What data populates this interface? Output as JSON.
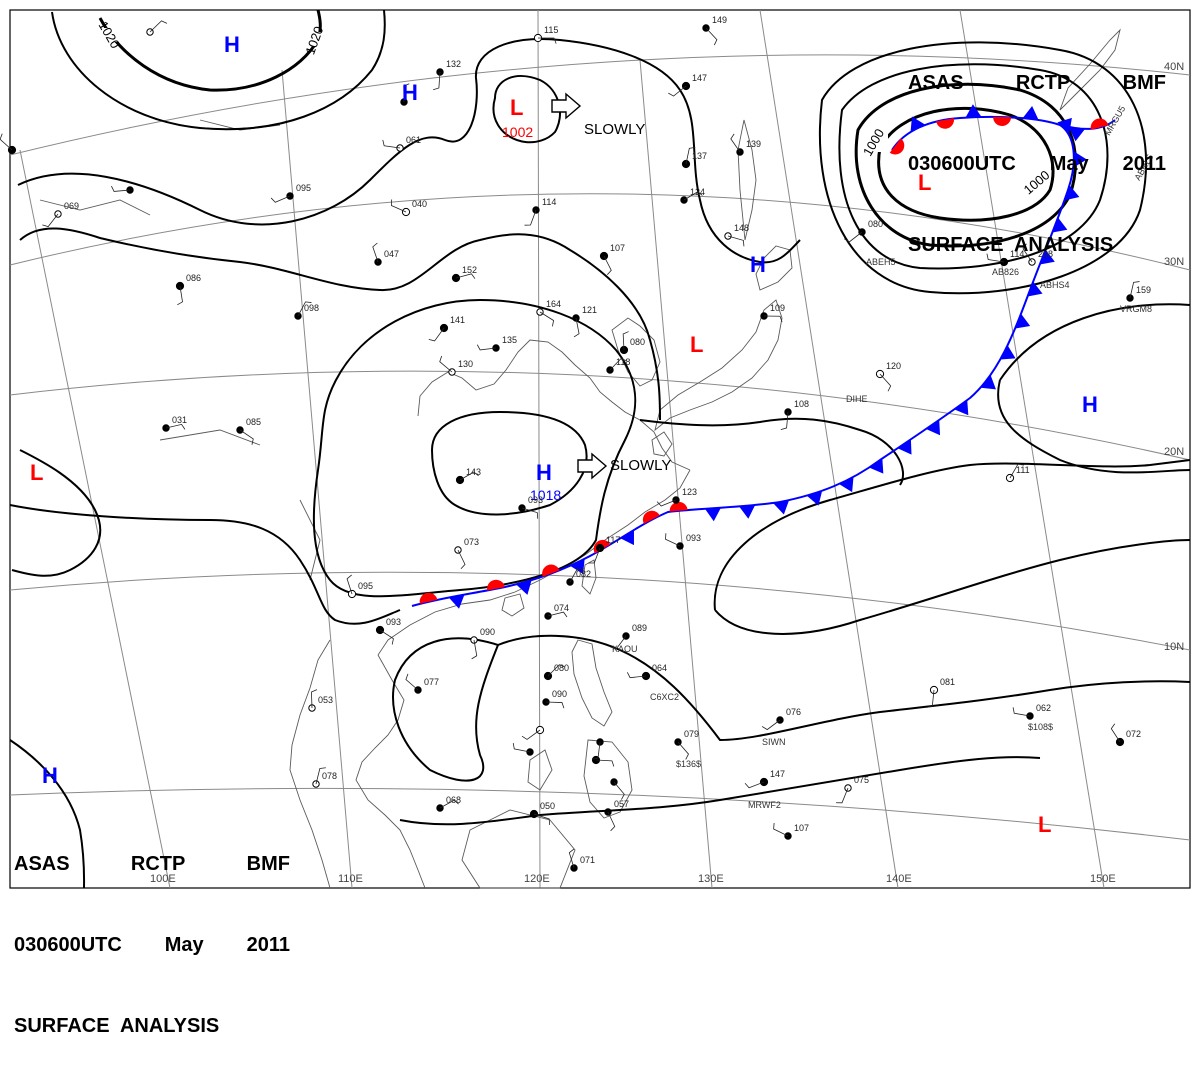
{
  "title": {
    "line1": [
      "ASAS",
      "RCTP",
      "BMF"
    ],
    "line2": [
      "030600UTC",
      "May",
      "2011"
    ],
    "line3": "SURFACE  ANALYSIS"
  },
  "pressure_centers": [
    {
      "type": "H",
      "color": "#0000ff"
    },
    {
      "type": "H",
      "color": "#0000ff"
    },
    {
      "type": "L",
      "color": "#ff0000",
      "value": "1002"
    },
    {
      "type": "H",
      "color": "#0000ff",
      "value": "1018"
    },
    {
      "type": "L",
      "color": "#ff0000"
    },
    {
      "type": "L",
      "color": "#ff0000"
    },
    {
      "type": "H",
      "color": "#0000ff"
    },
    {
      "type": "H",
      "color": "#0000ff"
    },
    {
      "type": "L",
      "color": "#ff0000"
    },
    {
      "type": "H",
      "color": "#0000ff"
    },
    {
      "type": "L",
      "color": "#ff0000"
    }
  ],
  "movement_labels": [
    "SLOWLY",
    "SLOWLY"
  ],
  "isobar_labels": [
    "1020",
    "1020",
    "1000",
    "1000"
  ],
  "longitude_labels": [
    "100E",
    "110E",
    "120E",
    "130E",
    "140E",
    "150E"
  ],
  "latitude_labels": [
    "40N",
    "30N",
    "20N",
    "10N"
  ],
  "station_ids": [
    "MRGU5",
    "ABRL5",
    "ABEH5",
    "AB826",
    "ABHS4",
    "VRGM8",
    "DIHE",
    "KAOU",
    "C6XC2",
    "SIWN",
    "$136$",
    "MRWF2",
    "$108$"
  ],
  "station_values": [
    "115",
    "149",
    "132",
    "147",
    "061",
    "139",
    "137",
    "124",
    "148",
    "107",
    "114",
    "095",
    "040",
    "047",
    "098",
    "152",
    "164",
    "121",
    "141",
    "135",
    "130",
    "080",
    "118",
    "109",
    "120",
    "108",
    "080",
    "114",
    "208",
    "159",
    "143",
    "093",
    "073",
    "117",
    "123",
    "093",
    "095",
    "082",
    "074",
    "093",
    "090",
    "089",
    "064",
    "077",
    "053",
    "080",
    "090",
    "079",
    "081",
    "076",
    "062",
    "072",
    "078",
    "068",
    "050",
    "057",
    "075",
    "147",
    "107",
    "071",
    "111",
    "031",
    "085",
    "086",
    "069"
  ],
  "colors": {
    "isobar": "#000000",
    "grid": "#888888",
    "coast": "#555555",
    "warm_front": "#ff0000",
    "cold_front": "#0000ff",
    "high": "#0000ff",
    "low": "#ff0000"
  }
}
